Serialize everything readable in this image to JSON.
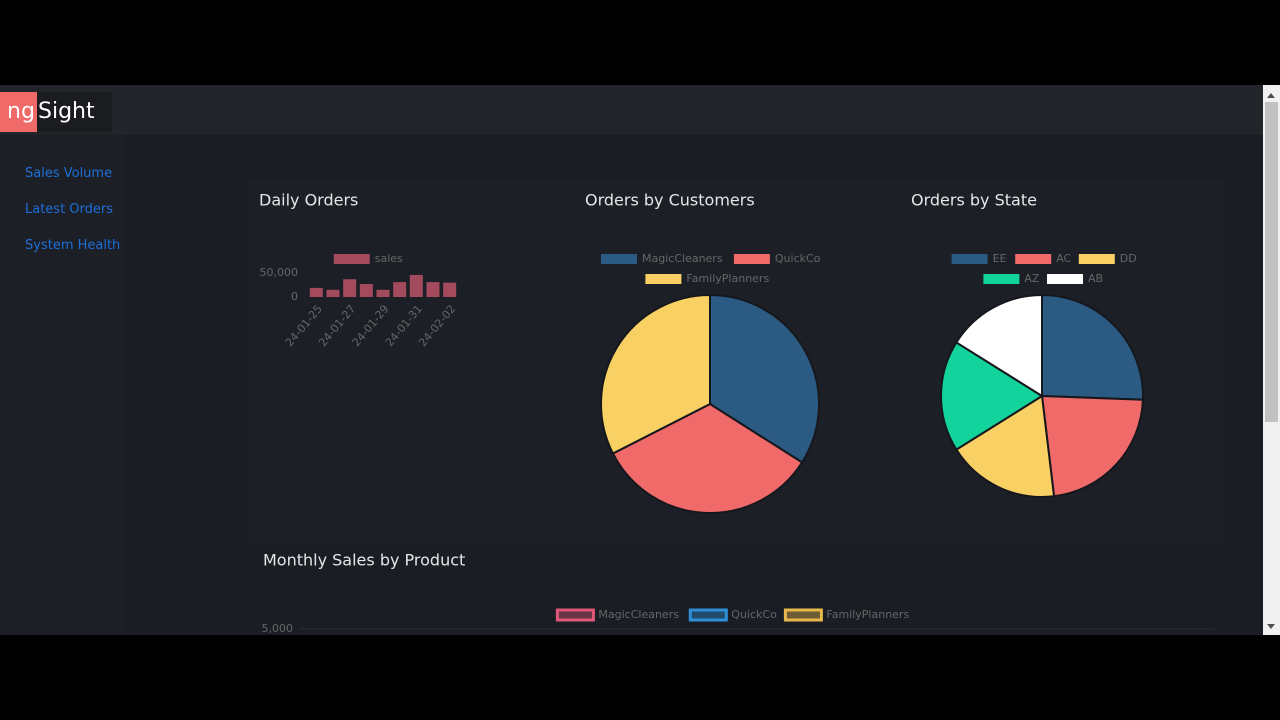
{
  "header": {
    "logo_prefix": "ng",
    "logo_suffix": "Sight"
  },
  "nav": [
    "Sales Volume",
    "Latest Orders",
    "System Health"
  ],
  "chart_data": [
    {
      "type": "bar",
      "title": "Daily Orders",
      "categories": [
        "24-01-25",
        null,
        "24-01-27",
        null,
        "24-01-29",
        null,
        "24-01-31",
        null,
        "24-02-02"
      ],
      "series": [
        {
          "name": "sales",
          "color": "#a34a5d",
          "values": [
            19000,
            15000,
            37000,
            27000,
            15000,
            31000,
            46000,
            31000,
            30000
          ]
        }
      ],
      "ylim": [
        0,
        60000
      ],
      "yticks": [
        0,
        {
          "value": 50000,
          "label": "50,000"
        }
      ],
      "legend": "top"
    },
    {
      "type": "pie",
      "title": "Orders by Customers",
      "categories": [
        "MagicCleaners",
        "QuickCo",
        "FamilyPlanners"
      ],
      "values": [
        34,
        33.5,
        32.5
      ],
      "colors": [
        "#2b5a83",
        "#f06a6a",
        "#f9d064"
      ],
      "legend": "top"
    },
    {
      "type": "pie",
      "title": "Orders by State",
      "categories": [
        "EE",
        "AC",
        "DD",
        "AZ",
        "AB"
      ],
      "values": [
        25.6,
        22.5,
        18,
        17.8,
        16.1
      ],
      "colors": [
        "#2b5a83",
        "#f06a6a",
        "#f9d064",
        "#12d39b",
        "#ffffff"
      ],
      "legend": "top"
    },
    {
      "type": "line",
      "title": "Monthly Sales by Product",
      "series": [
        {
          "name": "MagicCleaners",
          "color": "#e0577a"
        },
        {
          "name": "QuickCo",
          "color": "#2f8fd8"
        },
        {
          "name": "FamilyPlanners",
          "color": "#e8b94a"
        }
      ],
      "yticks": [
        {
          "value": 5000,
          "label": "5,000"
        }
      ],
      "legend": "top"
    }
  ]
}
